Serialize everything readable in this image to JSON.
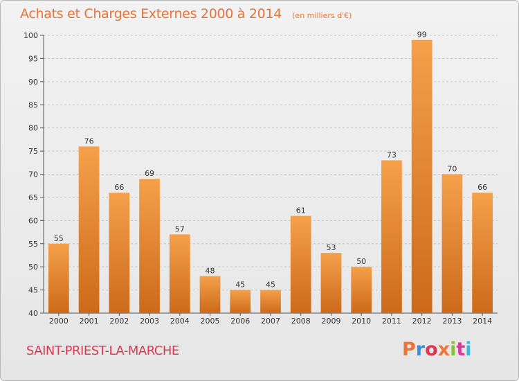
{
  "header": {
    "title": "Achats et Charges Externes 2000 à 2014",
    "subtitle": "(en milliers d'€)"
  },
  "footer": {
    "commune": "SAINT-PRIEST-LA-MARCHE",
    "logo": "Proxiti",
    "logo_colors": [
      "#e8743a",
      "#3a8fd9",
      "#d93a52",
      "#ea7a3a",
      "#8bbf3a",
      "#d93a9a",
      "#3ab8d9"
    ]
  },
  "chart_data": {
    "type": "bar",
    "categories": [
      "2000",
      "2001",
      "2002",
      "2003",
      "2004",
      "2005",
      "2006",
      "2007",
      "2008",
      "2009",
      "2010",
      "2011",
      "2012",
      "2013",
      "2014"
    ],
    "values": [
      55,
      76,
      66,
      69,
      57,
      48,
      45,
      45,
      61,
      53,
      50,
      73,
      99,
      70,
      66
    ],
    "title": "Achats et Charges Externes 2000 à 2014",
    "subtitle": "(en milliers d'€)",
    "xlabel": "",
    "ylabel": "",
    "ylim": [
      40,
      100
    ],
    "yticks": [
      40,
      45,
      50,
      55,
      60,
      65,
      70,
      75,
      80,
      85,
      90,
      95,
      100
    ],
    "grid": true,
    "bar_color": "#f0923a"
  }
}
